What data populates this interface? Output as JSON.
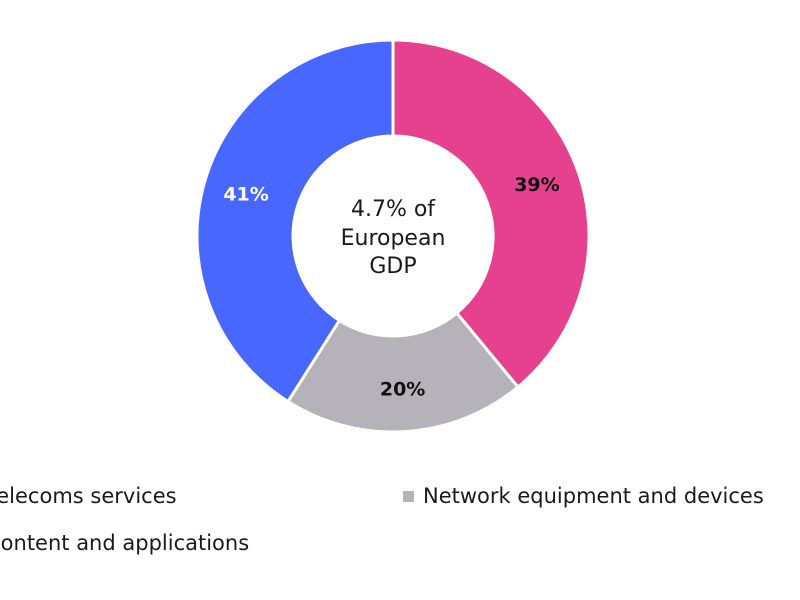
{
  "chart_data": {
    "type": "pie",
    "donut": true,
    "center_label": [
      "4.7% of",
      "European",
      "GDP"
    ],
    "slices": [
      {
        "name": "Telecoms services",
        "value": 39,
        "label": "39%",
        "color": "#E6418E",
        "label_color": "#111111"
      },
      {
        "name": "Network equipment and devices",
        "value": 20,
        "label": "20%",
        "color": "#B5B2BA",
        "label_color": "#111111"
      },
      {
        "name": "Content and applications",
        "value": 41,
        "label": "41%",
        "color": "#4767FF",
        "label_color": "#FFFFFF"
      }
    ],
    "legend_position": "bottom"
  }
}
